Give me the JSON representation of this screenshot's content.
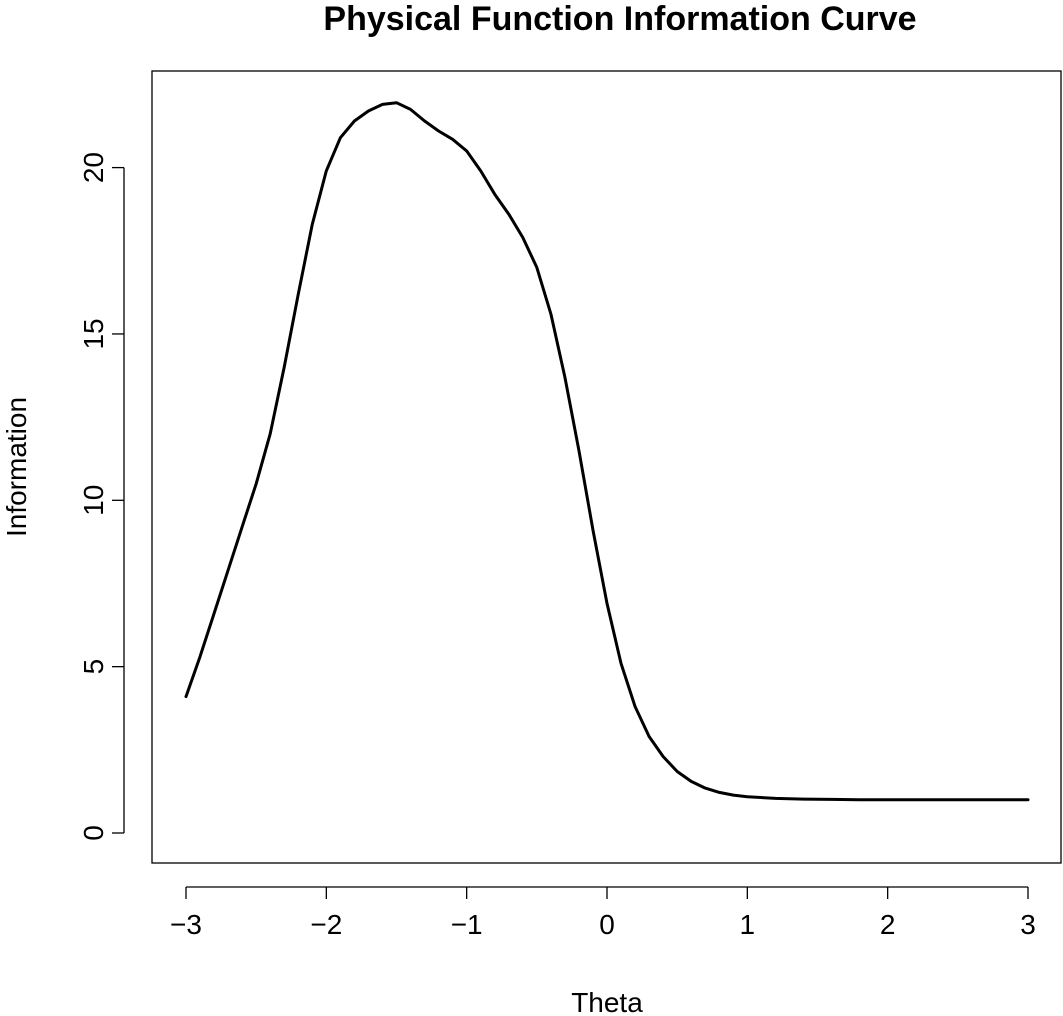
{
  "chart_data": {
    "type": "line",
    "title": "Physical Function Information Curve",
    "xlabel": "Theta",
    "ylabel": "Information",
    "xlim": [
      -3,
      3
    ],
    "ylim": [
      0,
      22
    ],
    "x_ticks": [
      -3,
      -2,
      -1,
      0,
      1,
      2,
      3
    ],
    "x_tick_labels": [
      "−3",
      "−2",
      "−1",
      "0",
      "1",
      "2",
      "3"
    ],
    "y_ticks": [
      0,
      5,
      10,
      15,
      20
    ],
    "y_tick_labels": [
      "0",
      "5",
      "10",
      "15",
      "20"
    ],
    "grid": false,
    "legend": "none",
    "line_color": "#000000",
    "series": [
      {
        "x": [
          -3.0,
          -2.9,
          -2.8,
          -2.7,
          -2.6,
          -2.5,
          -2.4,
          -2.3,
          -2.2,
          -2.1,
          -2.0,
          -1.9,
          -1.8,
          -1.7,
          -1.6,
          -1.5,
          -1.4,
          -1.3,
          -1.2,
          -1.1,
          -1.0,
          -0.9,
          -0.8,
          -0.7,
          -0.6,
          -0.5,
          -0.4,
          -0.3,
          -0.2,
          -0.1,
          0.0,
          0.1,
          0.2,
          0.3,
          0.4,
          0.5,
          0.6,
          0.7,
          0.8,
          0.9,
          1.0,
          1.2,
          1.4,
          1.6,
          1.8,
          2.0,
          2.5,
          3.0
        ],
        "y": [
          4.1,
          5.3,
          6.6,
          7.9,
          9.2,
          10.5,
          12.0,
          14.0,
          16.2,
          18.3,
          19.9,
          20.9,
          21.4,
          21.7,
          21.9,
          21.95,
          21.75,
          21.4,
          21.1,
          20.85,
          20.5,
          19.9,
          19.2,
          18.6,
          17.9,
          17.0,
          15.6,
          13.7,
          11.5,
          9.1,
          6.9,
          5.1,
          3.8,
          2.9,
          2.3,
          1.85,
          1.55,
          1.35,
          1.22,
          1.14,
          1.09,
          1.04,
          1.02,
          1.01,
          1.0,
          1.0,
          1.0,
          1.0
        ]
      }
    ]
  }
}
